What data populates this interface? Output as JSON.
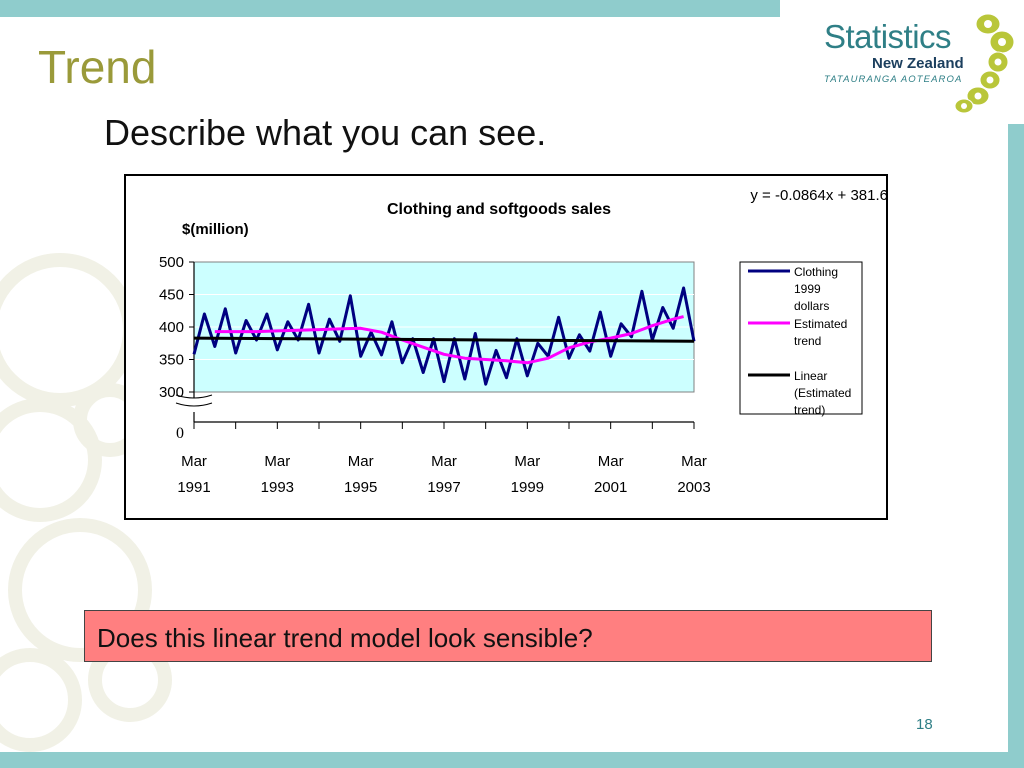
{
  "slide": {
    "title": "Trend",
    "subtitle": "Describe what you can see.",
    "question": "Does this linear trend model look sensible?",
    "page_number": "18",
    "colors": {
      "teal_frame": "#8fcccc",
      "title": "#9a9a3a",
      "question_bg": "#ff7f80",
      "plot_bg": "#ccffff"
    }
  },
  "logo": {
    "main": "Statistics",
    "sub": "New Zealand",
    "maori": "TATAURANGA AOTEAROA"
  },
  "chart_data": {
    "type": "line",
    "title": "Clothing and softgoods sales",
    "ylabel": "$(million)",
    "xlabel": "",
    "equation": "y = -0.0864x + 381.6",
    "ylim": [
      300,
      500
    ],
    "broken_axis_zero": "0",
    "y_ticks": [
      "500",
      "450",
      "400",
      "350",
      "300"
    ],
    "x_ticks": [
      {
        "month": "Mar",
        "year": "1991"
      },
      {
        "month": "Mar",
        "year": "1993"
      },
      {
        "month": "Mar",
        "year": "1995"
      },
      {
        "month": "Mar",
        "year": "1997"
      },
      {
        "month": "Mar",
        "year": "1999"
      },
      {
        "month": "Mar",
        "year": "2001"
      },
      {
        "month": "Mar",
        "year": "2003"
      }
    ],
    "grid": true,
    "legend_position": "right",
    "series": [
      {
        "name": "Clothing 1999 dollars",
        "legend_lines": [
          "Clothing",
          "1999",
          "dollars"
        ],
        "color": "#000080",
        "x": [
          1991.0,
          1991.25,
          1991.5,
          1991.75,
          1992.0,
          1992.25,
          1992.5,
          1992.75,
          1993.0,
          1993.25,
          1993.5,
          1993.75,
          1994.0,
          1994.25,
          1994.5,
          1994.75,
          1995.0,
          1995.25,
          1995.5,
          1995.75,
          1996.0,
          1996.25,
          1996.5,
          1996.75,
          1997.0,
          1997.25,
          1997.5,
          1997.75,
          1998.0,
          1998.25,
          1998.5,
          1998.75,
          1999.0,
          1999.25,
          1999.5,
          1999.75,
          2000.0,
          2000.25,
          2000.5,
          2000.75,
          2001.0,
          2001.25,
          2001.5,
          2001.75,
          2002.0,
          2002.25,
          2002.5,
          2002.75,
          2003.0
        ],
        "values": [
          358,
          420,
          370,
          428,
          360,
          410,
          380,
          420,
          365,
          408,
          380,
          435,
          360,
          412,
          378,
          448,
          355,
          392,
          357,
          408,
          345,
          382,
          330,
          382,
          316,
          382,
          320,
          390,
          312,
          364,
          322,
          382,
          325,
          375,
          355,
          415,
          352,
          388,
          363,
          423,
          355,
          405,
          385,
          455,
          380,
          430,
          398,
          460,
          378
        ]
      },
      {
        "name": "Estimated trend",
        "legend_lines": [
          "Estimated",
          "trend"
        ],
        "color": "#ff00ff",
        "x": [
          1991.5,
          1992.0,
          1992.5,
          1993.0,
          1993.5,
          1994.0,
          1994.5,
          1995.0,
          1995.5,
          1996.0,
          1996.5,
          1997.0,
          1997.5,
          1998.0,
          1998.5,
          1999.0,
          1999.5,
          2000.0,
          2000.5,
          2001.0,
          2001.5,
          2002.0,
          2002.5,
          2002.75
        ],
        "values": [
          393,
          393,
          393,
          394,
          395,
          396,
          397,
          398,
          392,
          380,
          369,
          358,
          352,
          350,
          348,
          345,
          352,
          368,
          377,
          383,
          390,
          402,
          412,
          416
        ]
      },
      {
        "name": "Linear (Estimated trend)",
        "legend_lines": [
          "Linear",
          "(Estimated",
          "trend)"
        ],
        "color": "#000000",
        "x": [
          1991.0,
          2003.0
        ],
        "values": [
          383,
          378
        ]
      }
    ]
  }
}
